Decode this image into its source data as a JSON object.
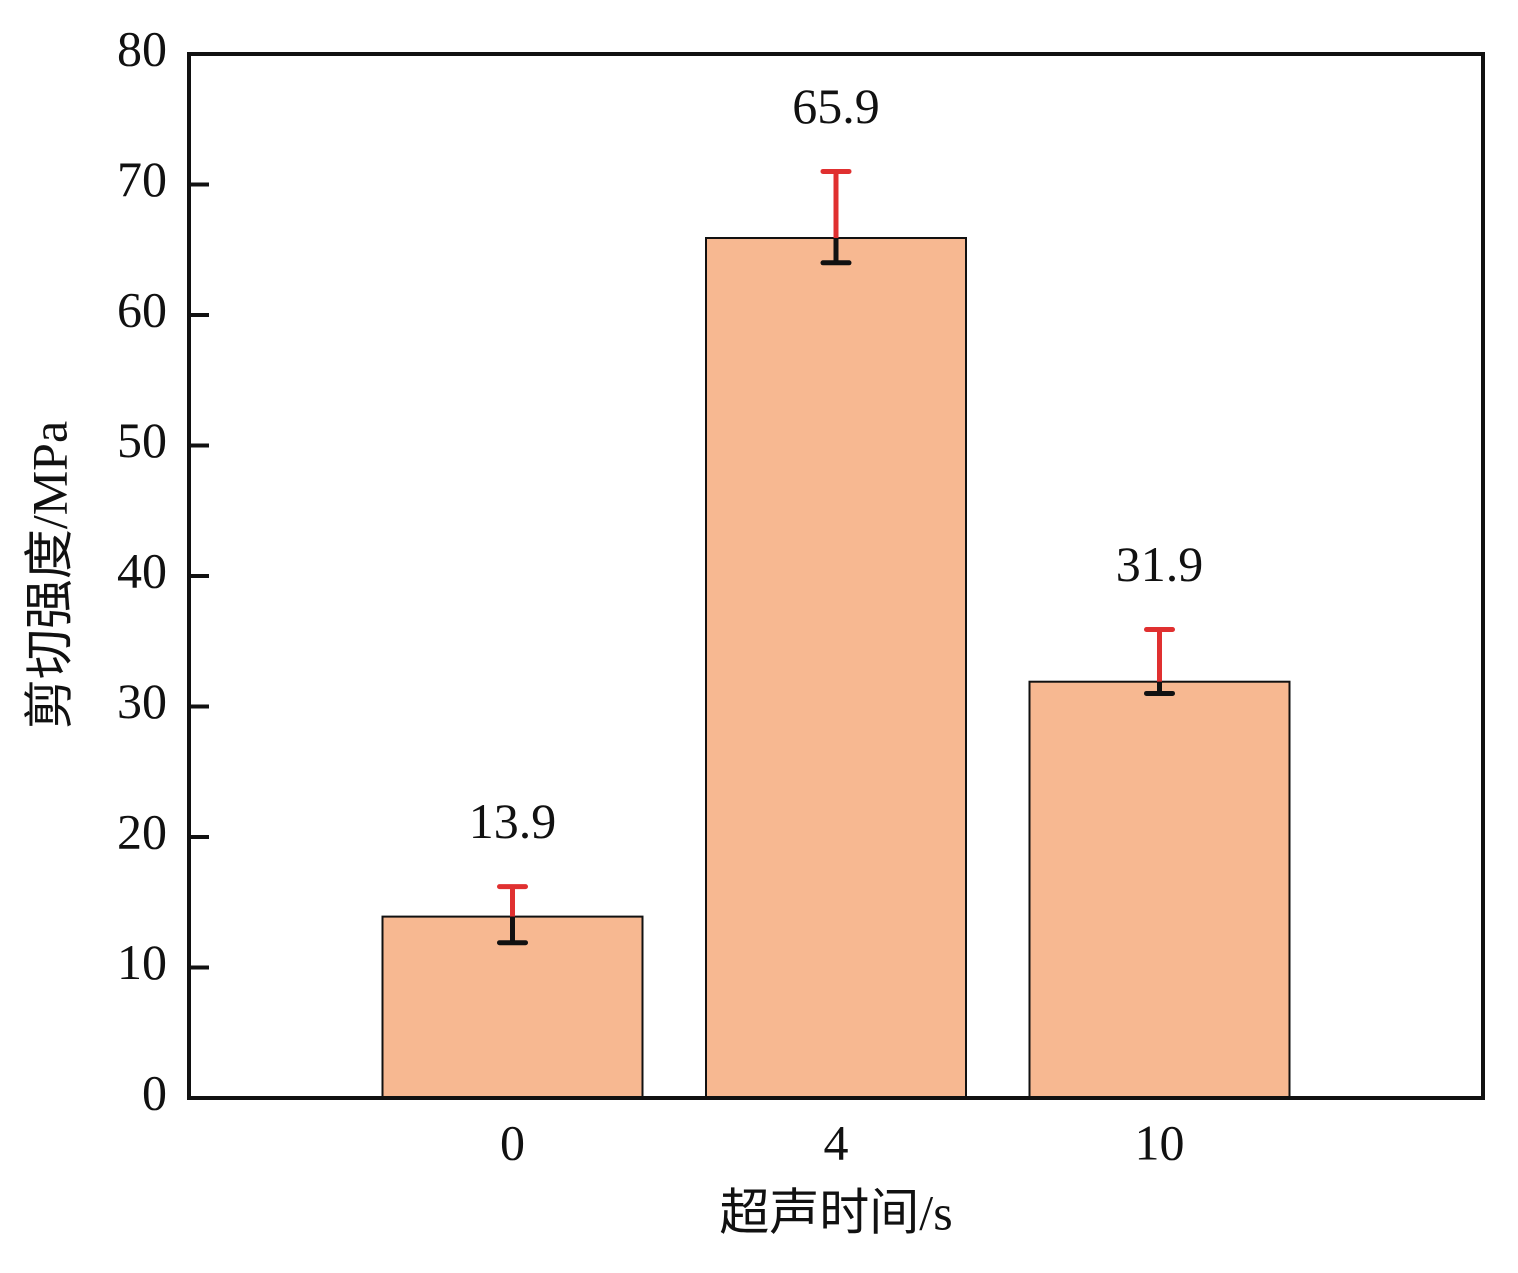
{
  "chart_data": {
    "type": "bar",
    "x_label": "超声时间/s",
    "y_label": "剪切强度/MPa",
    "categories": [
      "0",
      "4",
      "10"
    ],
    "values": [
      13.9,
      65.9,
      31.9
    ],
    "error_upper": [
      2.3,
      5.1,
      4.0
    ],
    "error_lower": [
      2.0,
      1.9,
      0.9
    ],
    "color": "#f7b891",
    "edge_color": "#111111",
    "error_upper_color": "#e03030",
    "error_lower_color": "#111111",
    "ylim": [
      0,
      80
    ],
    "yticks": [
      0,
      10,
      20,
      30,
      40,
      50,
      60,
      70,
      80
    ]
  }
}
